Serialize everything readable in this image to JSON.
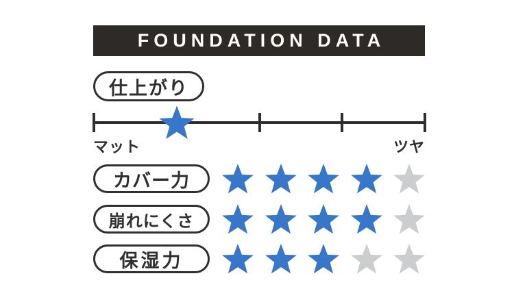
{
  "header": {
    "title": "FOUNDATION DATA"
  },
  "colors": {
    "background": "#ffffff",
    "header_bg": "#2e2a27",
    "ink": "#2f2f2f",
    "star_active": "#3776c8",
    "star_inactive": "#cbcdce"
  },
  "finish_scale": {
    "label": "仕上がり",
    "left_label": "マット",
    "right_label": "ツヤ",
    "positions": 5,
    "value": 2
  },
  "ratings": [
    {
      "label": "カバー力",
      "score": 4,
      "max": 5
    },
    {
      "label": "崩れにくさ",
      "score": 4,
      "max": 5
    },
    {
      "label": "保湿力",
      "score": 3,
      "max": 5
    }
  ],
  "chart_data": {
    "type": "table",
    "title": "FOUNDATION DATA",
    "scale": {
      "label": "仕上がり",
      "min_label": "マット",
      "max_label": "ツヤ",
      "positions": 5,
      "value": 2
    },
    "categories": [
      "カバー力",
      "崩れにくさ",
      "保湿力"
    ],
    "values": [
      4,
      4,
      3
    ],
    "max": 5,
    "legend": "off"
  }
}
